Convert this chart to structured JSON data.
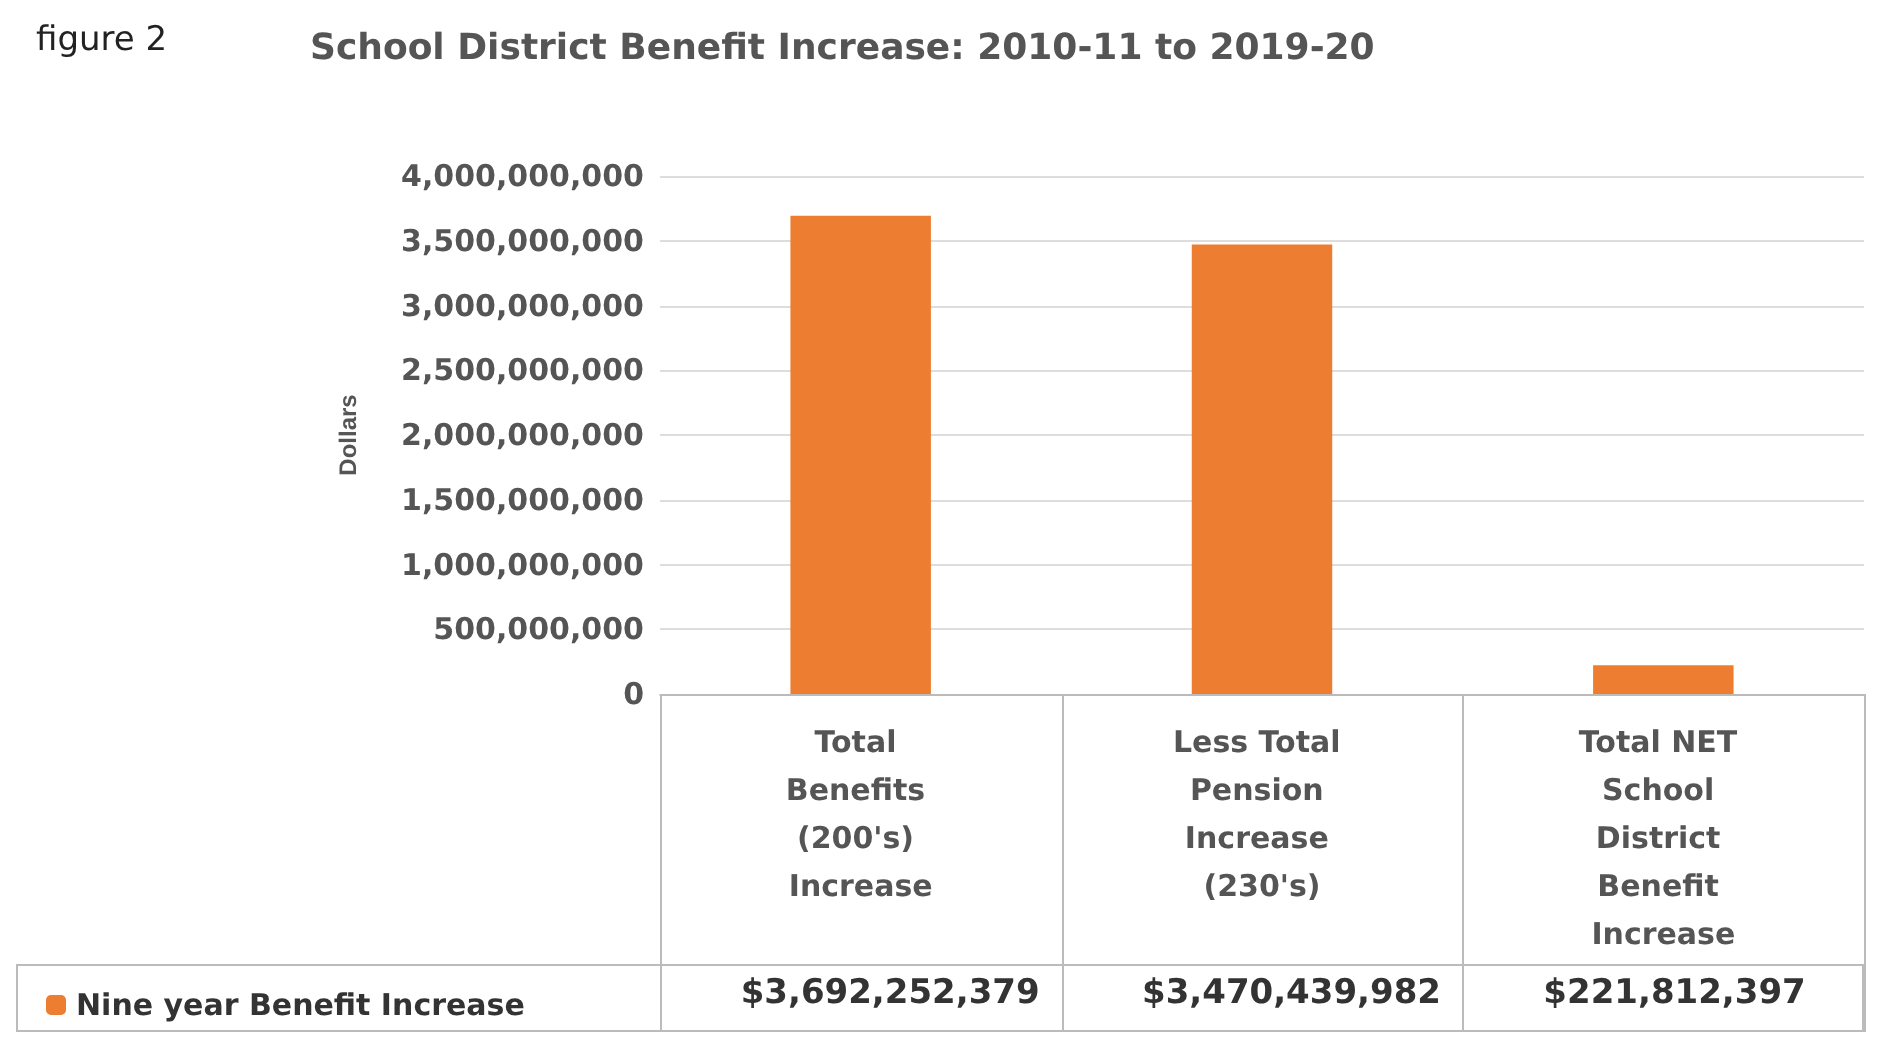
{
  "chart_data": {
    "type": "bar",
    "title": "School District Benefit Increase: 2010-11 to 2019-20",
    "ylabel": "Dollars",
    "annotations": [
      "figure 2"
    ],
    "categories": [
      "Total Benefits (200's) Increase",
      "Less Total Pension Increase (230's)",
      "Total NET School District Benefit Increase"
    ],
    "series": [
      {
        "name": "Nine year Benefit Increase",
        "color": "#ed7d31",
        "values": [
          3692252379,
          3470439982,
          221812397
        ],
        "value_labels": [
          "$3,692,252,379",
          "$3,470,439,982",
          "$221,812,397"
        ]
      }
    ],
    "ylim": [
      0,
      4000000000
    ],
    "yticks": [
      0,
      {
        "value": 500000000,
        "label": "500,000,000"
      },
      {
        "value": 1000000000,
        "label": "1,000,000,000"
      },
      {
        "value": 1500000000,
        "label": "1,500,000,000"
      },
      {
        "value": 2000000000,
        "label": "2,000,000,000"
      },
      {
        "value": 2500000000,
        "label": "2,500,000,000"
      },
      {
        "value": 3000000000,
        "label": "3,000,000,000"
      },
      {
        "value": 3500000000,
        "label": "3,500,000,000"
      },
      {
        "value": 4000000000,
        "label": "4,000,000,000"
      }
    ],
    "grid": "y",
    "legend": "bottom left"
  }
}
